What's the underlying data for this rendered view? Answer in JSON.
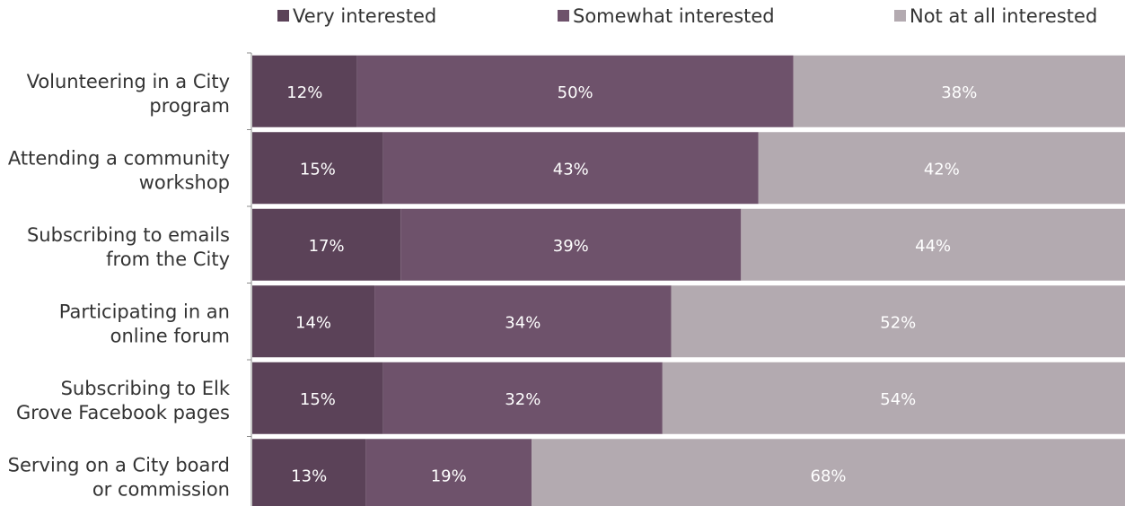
{
  "chart_data": {
    "type": "bar",
    "orientation": "horizontal",
    "stacked": true,
    "normalized_100": true,
    "categories": [
      [
        "Volunteering in a City",
        "program"
      ],
      [
        "Attending a community",
        "workshop"
      ],
      [
        "Subscribing to emails",
        "from the City"
      ],
      [
        "Participating in an",
        "online forum"
      ],
      [
        "Subscribing to Elk",
        "Grove Facebook pages"
      ],
      [
        "Serving on a City board",
        "or commission"
      ]
    ],
    "series": [
      {
        "name": "Very interested",
        "color": "#5b4258",
        "values": [
          12,
          15,
          17,
          14,
          15,
          13
        ]
      },
      {
        "name": "Somewhat interested",
        "color": "#6e526b",
        "values": [
          50,
          43,
          39,
          34,
          32,
          19
        ]
      },
      {
        "name": "Not at all interested",
        "color": "#b3aab0",
        "values": [
          38,
          42,
          44,
          52,
          54,
          68
        ]
      }
    ],
    "data_label_suffix": "%",
    "legend_position": "top",
    "grid": false
  }
}
